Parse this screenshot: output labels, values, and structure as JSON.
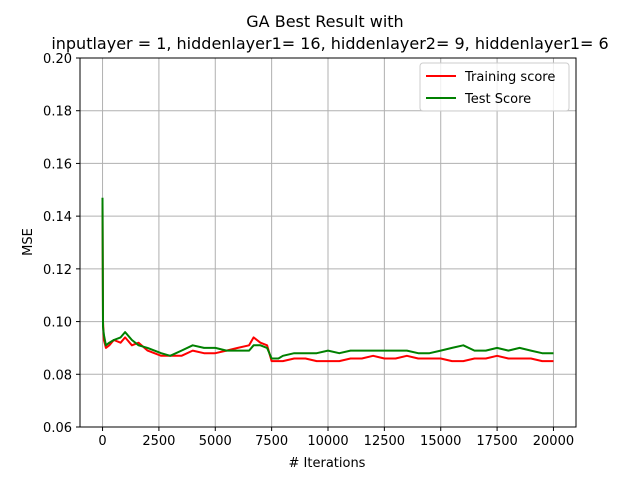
{
  "chart_data": {
    "type": "line",
    "title": "GA Best Result with",
    "subtitle": "inputlayer = 1, hiddenlayer1= 16, hiddenlayer2= 9, hiddenlayer1= 6",
    "xlabel": "# Iterations",
    "ylabel": "MSE",
    "xlim": [
      -1000,
      21000
    ],
    "ylim": [
      0.06,
      0.2
    ],
    "xticks": [
      0,
      2500,
      5000,
      7500,
      10000,
      12500,
      15000,
      17500,
      20000
    ],
    "yticks": [
      0.06,
      0.08,
      0.1,
      0.12,
      0.14,
      0.16,
      0.18,
      0.2
    ],
    "grid": true,
    "legend_position": "top-right",
    "series": [
      {
        "name": "Training score",
        "color": "#ff0000",
        "x": [
          0,
          20,
          60,
          150,
          300,
          500,
          800,
          1000,
          1300,
          1600,
          2000,
          2300,
          2600,
          3000,
          3500,
          4000,
          4500,
          5000,
          5500,
          6000,
          6500,
          6700,
          7000,
          7300,
          7500,
          7800,
          8000,
          8500,
          9000,
          9500,
          10000,
          10500,
          11000,
          11500,
          12000,
          12500,
          13000,
          13500,
          14000,
          14500,
          15000,
          15500,
          16000,
          16500,
          17000,
          17500,
          18000,
          18500,
          19000,
          19500,
          20000
        ],
        "y": [
          0.145,
          0.1,
          0.093,
          0.09,
          0.091,
          0.093,
          0.092,
          0.094,
          0.091,
          0.092,
          0.089,
          0.088,
          0.087,
          0.087,
          0.087,
          0.089,
          0.088,
          0.088,
          0.089,
          0.09,
          0.091,
          0.094,
          0.092,
          0.091,
          0.085,
          0.085,
          0.085,
          0.086,
          0.086,
          0.085,
          0.085,
          0.085,
          0.086,
          0.086,
          0.087,
          0.086,
          0.086,
          0.087,
          0.086,
          0.086,
          0.086,
          0.085,
          0.085,
          0.086,
          0.086,
          0.087,
          0.086,
          0.086,
          0.086,
          0.085,
          0.085
        ]
      },
      {
        "name": "Test Score",
        "color": "#008000",
        "x": [
          0,
          20,
          60,
          150,
          300,
          500,
          800,
          1000,
          1300,
          1600,
          2000,
          2300,
          2600,
          3000,
          3500,
          4000,
          4500,
          5000,
          5500,
          6000,
          6500,
          6700,
          7000,
          7300,
          7500,
          7800,
          8000,
          8500,
          9000,
          9500,
          10000,
          10500,
          11000,
          11500,
          12000,
          12500,
          13000,
          13500,
          14000,
          14500,
          15000,
          15500,
          16000,
          16500,
          17000,
          17500,
          18000,
          18500,
          19000,
          19500,
          20000
        ],
        "y": [
          0.147,
          0.098,
          0.095,
          0.091,
          0.092,
          0.093,
          0.094,
          0.096,
          0.093,
          0.091,
          0.09,
          0.089,
          0.088,
          0.087,
          0.089,
          0.091,
          0.09,
          0.09,
          0.089,
          0.089,
          0.089,
          0.091,
          0.091,
          0.09,
          0.086,
          0.086,
          0.087,
          0.088,
          0.088,
          0.088,
          0.089,
          0.088,
          0.089,
          0.089,
          0.089,
          0.089,
          0.089,
          0.089,
          0.088,
          0.088,
          0.089,
          0.09,
          0.091,
          0.089,
          0.089,
          0.09,
          0.089,
          0.09,
          0.089,
          0.088,
          0.088
        ]
      }
    ]
  }
}
